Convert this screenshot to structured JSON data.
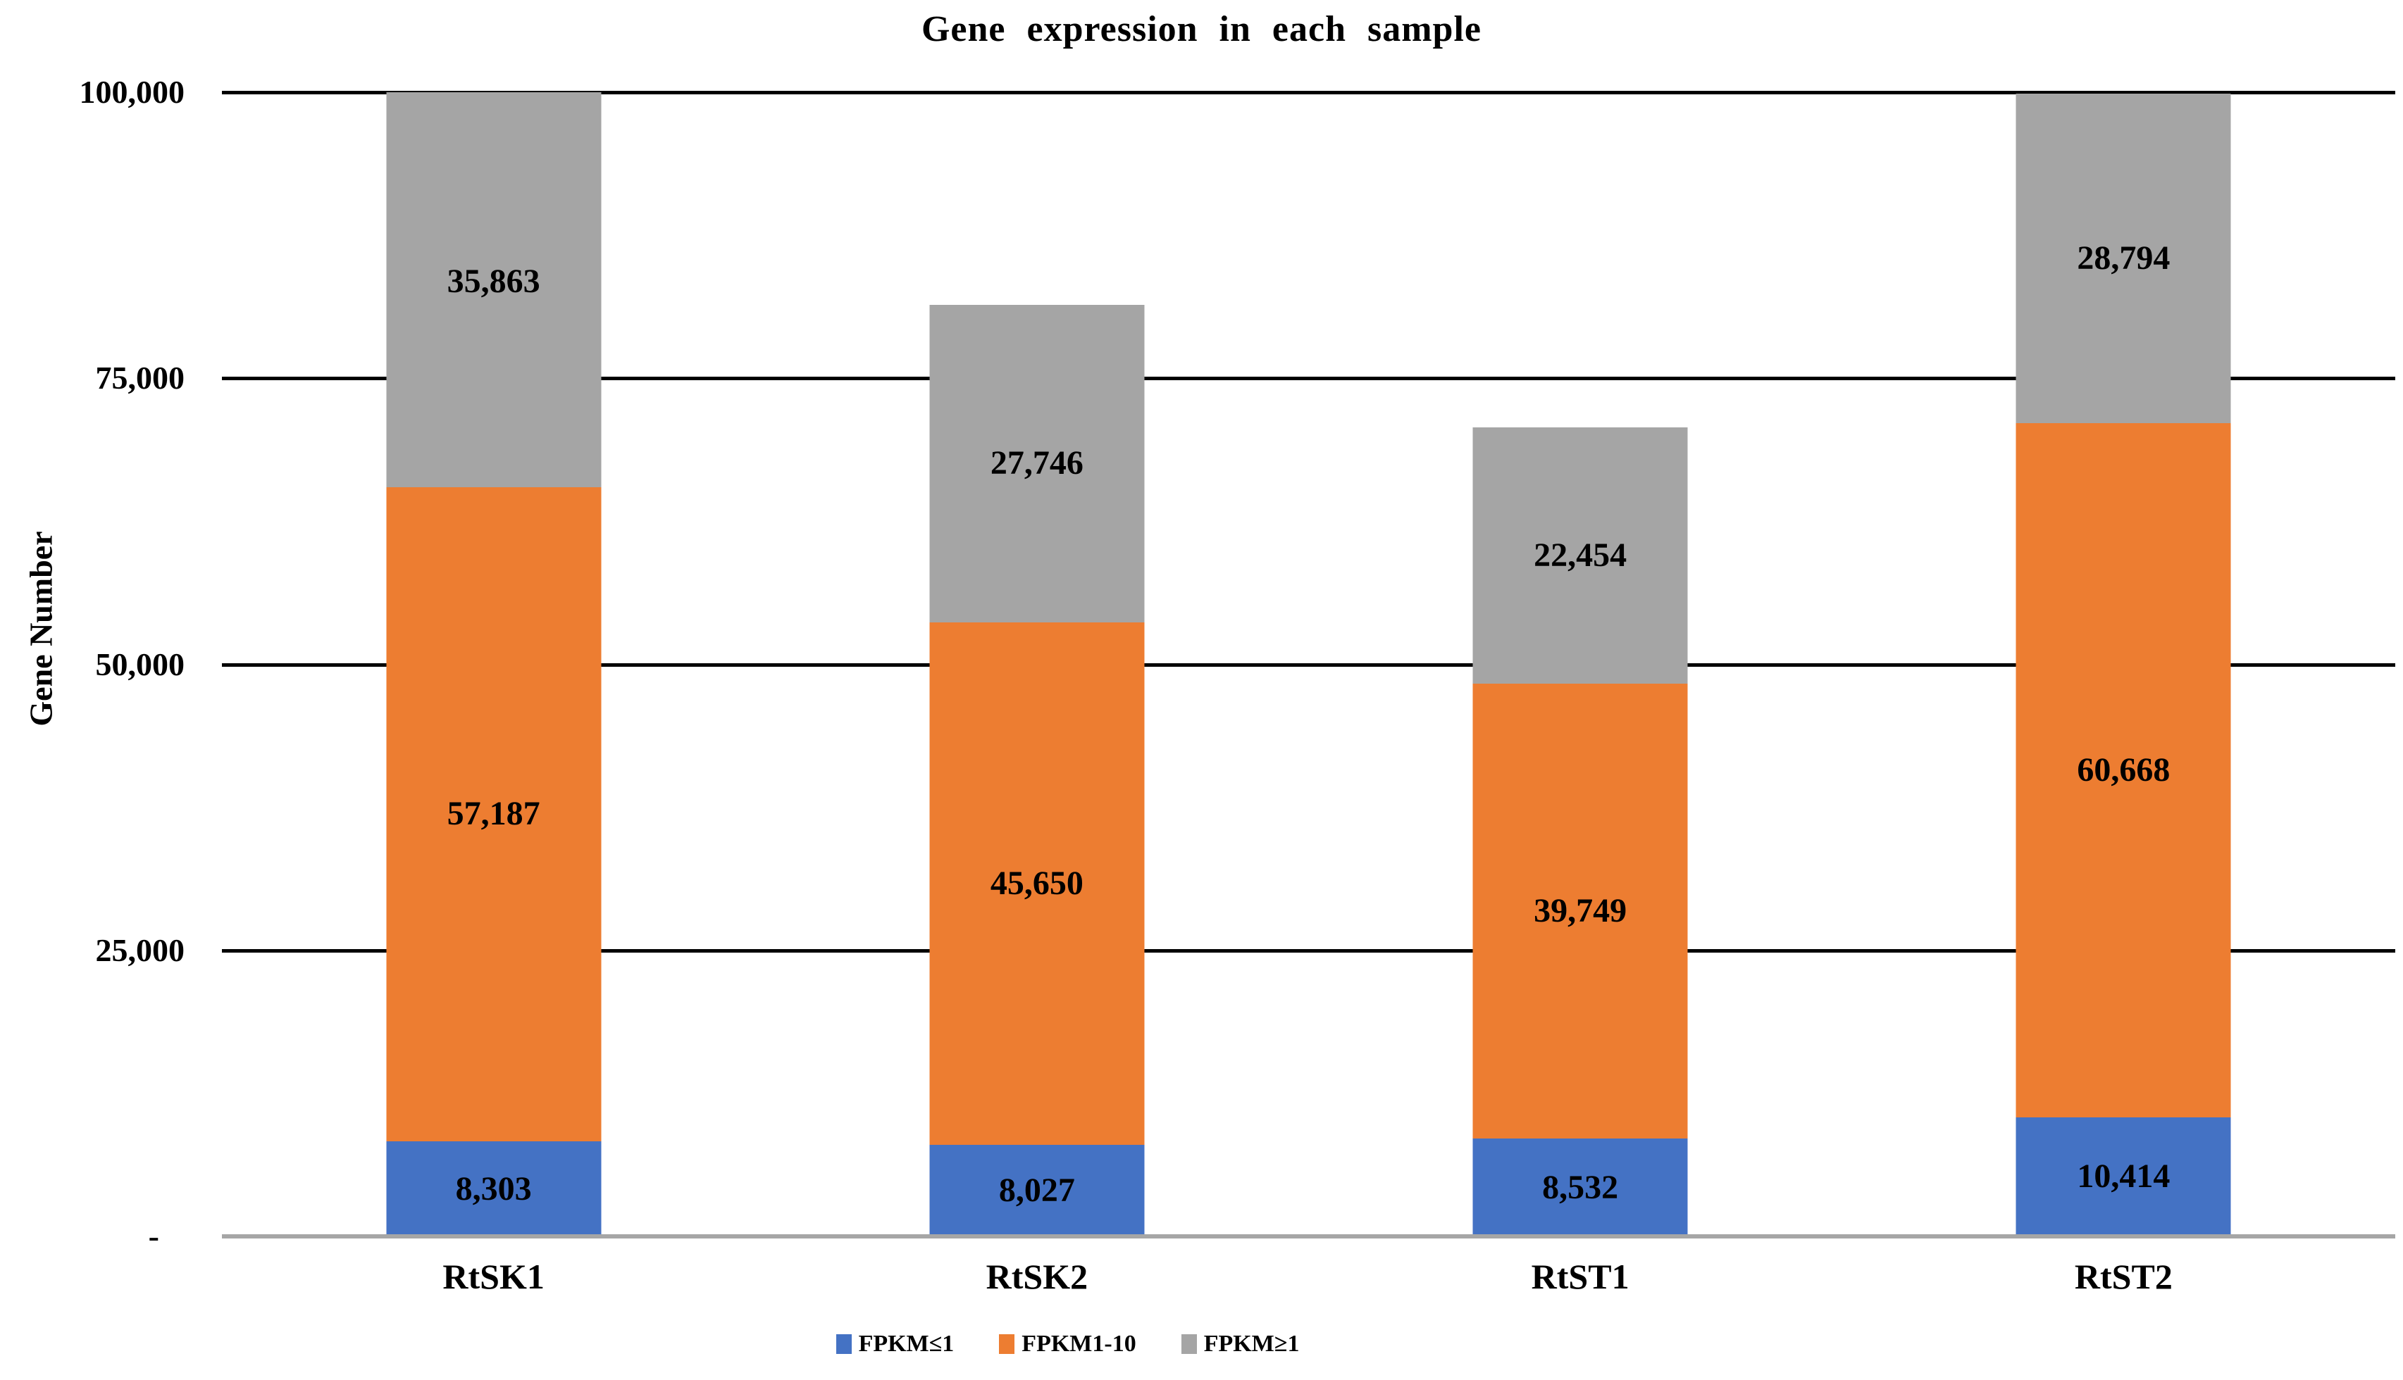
{
  "chart_data": {
    "type": "bar",
    "stacked": true,
    "title": "Gene expression in each sample",
    "xlabel": "",
    "ylabel": "Gene Number",
    "ylim": [
      0,
      100000
    ],
    "grid": true,
    "legend_position": "bottom",
    "categories": [
      "RtSK1",
      "RtSK2",
      "RtST1",
      "RtST2"
    ],
    "yticks": [
      {
        "value": 100000,
        "label": "100,000"
      },
      {
        "value": 75000,
        "label": "75,000"
      },
      {
        "value": 50000,
        "label": "50,000"
      },
      {
        "value": 25000,
        "label": "25,000"
      },
      {
        "value": 0,
        "label": "-"
      }
    ],
    "series": [
      {
        "name": "FPKM≤1",
        "color": "#4472C4",
        "values": [
          8303,
          8027,
          8532,
          10414
        ],
        "labels": [
          "8,303",
          "8,027",
          "8,532",
          "10,414"
        ]
      },
      {
        "name": "FPKM1-10",
        "color": "#ED7D31",
        "values": [
          57187,
          45650,
          39749,
          60668
        ],
        "labels": [
          "57,187",
          "45,650",
          "39,749",
          "60,668"
        ]
      },
      {
        "name": "FPKM≥1",
        "color": "#A5A5A5",
        "values": [
          35863,
          27746,
          22454,
          28794
        ],
        "labels": [
          "35,863",
          "27,746",
          "22,454",
          "28,794"
        ]
      }
    ]
  },
  "colors": {
    "gridline": "#000000",
    "axis_line": "#A6A6A6",
    "background": "#FFFFFF",
    "text": "#000000"
  }
}
